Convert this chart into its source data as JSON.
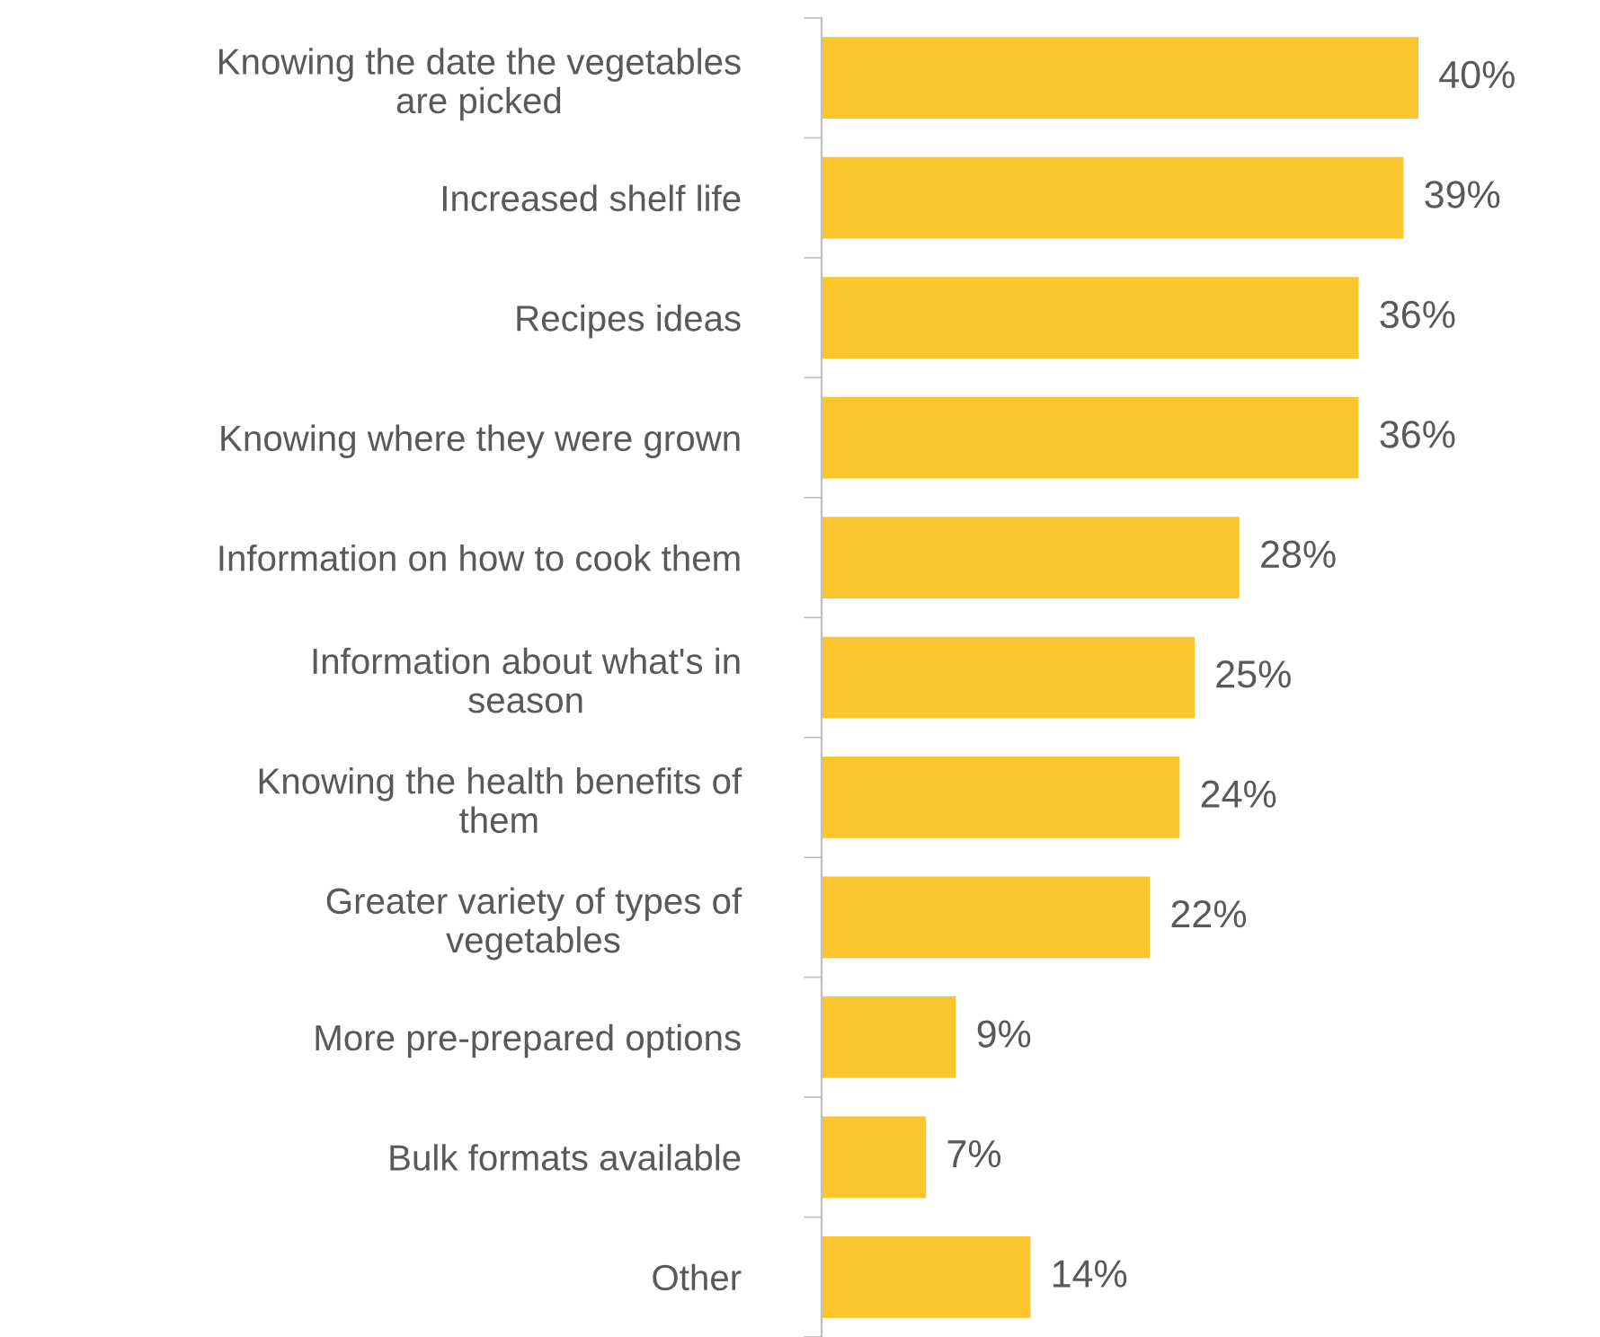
{
  "chart_data": {
    "type": "bar",
    "orientation": "horizontal",
    "categories": [
      "Knowing the date the vegetables\nare picked",
      "Increased shelf life",
      "Recipes ideas",
      "Knowing where they were grown",
      "Information on how to cook them",
      "Information about what's in\nseason",
      "Knowing the health benefits of\nthem",
      "Greater variety of types of\nvegetables",
      "More pre-prepared options",
      "Bulk formats available",
      "Other"
    ],
    "values": [
      40,
      39,
      36,
      36,
      28,
      25,
      24,
      22,
      9,
      7,
      14
    ],
    "value_labels": [
      "40%",
      "39%",
      "36%",
      "36%",
      "28%",
      "25%",
      "24%",
      "22%",
      "9%",
      "7%",
      "14%"
    ],
    "color": "#fbc52e",
    "grid": false,
    "legend": false
  }
}
